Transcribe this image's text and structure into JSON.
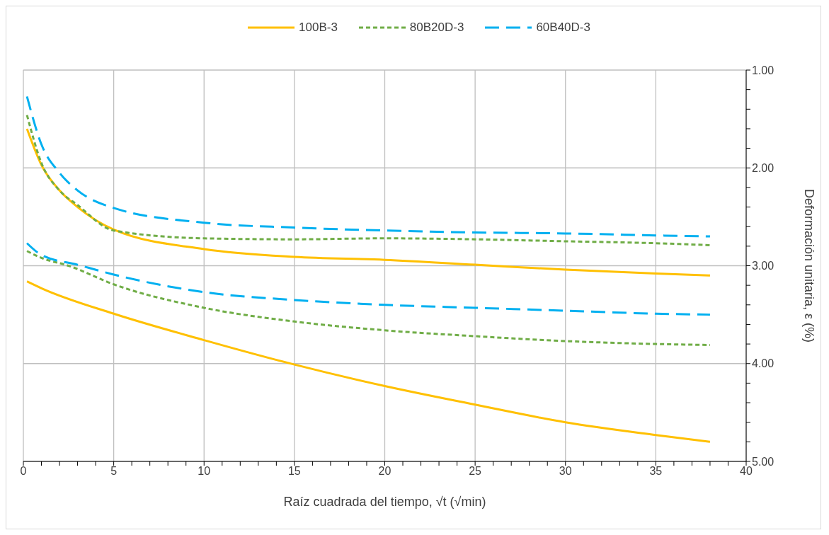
{
  "chart_data": {
    "type": "line",
    "xlabel": "Raíz cuadrada del tiempo, √t (√min)",
    "ylabel": "Deformación unitaria, ε (%)",
    "xlim": [
      0,
      40
    ],
    "ylim": [
      5,
      1
    ],
    "xticks": [
      0,
      {
        "value": 1,
        "label": null
      },
      {
        "value": 2,
        "label": null
      },
      {
        "value": 3,
        "label": null
      },
      {
        "value": 4,
        "label": null
      },
      5,
      {
        "value": 6,
        "label": null
      },
      {
        "value": 7,
        "label": null
      },
      {
        "value": 8,
        "label": null
      },
      {
        "value": 9,
        "label": null
      },
      10,
      {
        "value": 11,
        "label": null
      },
      {
        "value": 12,
        "label": null
      },
      {
        "value": 13,
        "label": null
      },
      {
        "value": 14,
        "label": null
      },
      15,
      {
        "value": 16,
        "label": null
      },
      {
        "value": 17,
        "label": null
      },
      {
        "value": 18,
        "label": null
      },
      {
        "value": 19,
        "label": null
      },
      20,
      {
        "value": 21,
        "label": null
      },
      {
        "value": 22,
        "label": null
      },
      {
        "value": 23,
        "label": null
      },
      {
        "value": 24,
        "label": null
      },
      25,
      {
        "value": 26,
        "label": null
      },
      {
        "value": 27,
        "label": null
      },
      {
        "value": 28,
        "label": null
      },
      {
        "value": 29,
        "label": null
      },
      30,
      {
        "value": 31,
        "label": null
      },
      {
        "value": 32,
        "label": null
      },
      {
        "value": 33,
        "label": null
      },
      {
        "value": 34,
        "label": null
      },
      35,
      {
        "value": 36,
        "label": null
      },
      {
        "value": 37,
        "label": null
      },
      {
        "value": 38,
        "label": null
      },
      {
        "value": 39,
        "label": null
      },
      40
    ],
    "yticks": [
      {
        "value": 1,
        "label": "1.00"
      },
      {
        "value": 1.2,
        "label": null
      },
      {
        "value": 1.4,
        "label": null
      },
      {
        "value": 1.6,
        "label": null
      },
      {
        "value": 1.8,
        "label": null
      },
      {
        "value": 2,
        "label": "2.00"
      },
      {
        "value": 2.2,
        "label": null
      },
      {
        "value": 2.4,
        "label": null
      },
      {
        "value": 2.6,
        "label": null
      },
      {
        "value": 2.8,
        "label": null
      },
      {
        "value": 3,
        "label": "3.00"
      },
      {
        "value": 3.2,
        "label": null
      },
      {
        "value": 3.4,
        "label": null
      },
      {
        "value": 3.6,
        "label": null
      },
      {
        "value": 3.8,
        "label": null
      },
      {
        "value": 4,
        "label": "4.00"
      },
      {
        "value": 4.2,
        "label": null
      },
      {
        "value": 4.4,
        "label": null
      },
      {
        "value": 4.6,
        "label": null
      },
      {
        "value": 4.8,
        "label": null
      },
      {
        "value": 5,
        "label": "5.00"
      }
    ],
    "grid": true,
    "legend": "top",
    "marker": "none",
    "series": [
      {
        "name": "100B-3",
        "color": "#ffc000",
        "line_style": "solid",
        "x": [
          0.2,
          1,
          2,
          3,
          5,
          10,
          15,
          20,
          25,
          30,
          35,
          38
        ],
        "values": [
          1.6,
          1.97,
          2.23,
          2.4,
          2.63,
          2.83,
          2.91,
          2.94,
          2.99,
          3.04,
          3.08,
          3.1
        ]
      },
      {
        "name": "80B20D-3",
        "color": "#70ad47",
        "line_style": "dotted",
        "x": [
          0.2,
          1,
          2,
          3,
          5,
          10,
          15,
          20,
          25,
          30,
          35,
          38
        ],
        "values": [
          1.46,
          1.95,
          2.23,
          2.38,
          2.64,
          2.72,
          2.73,
          2.72,
          2.73,
          2.75,
          2.77,
          2.79
        ]
      },
      {
        "name": "60B40D-3",
        "color": "#00b0f0",
        "line_style": "dashed",
        "x": [
          0.2,
          1,
          2,
          3,
          5,
          10,
          15,
          20,
          25,
          30,
          35,
          38
        ],
        "values": [
          1.27,
          1.76,
          2.05,
          2.23,
          2.41,
          2.56,
          2.61,
          2.64,
          2.66,
          2.67,
          2.69,
          2.7
        ]
      },
      {
        "color": "#ffc000",
        "line_style": "solid",
        "x": [
          0.2,
          1,
          5,
          10,
          15,
          20,
          25,
          30,
          35,
          38
        ],
        "values": [
          3.16,
          3.23,
          3.49,
          3.76,
          4.01,
          4.23,
          4.42,
          4.6,
          4.73,
          4.8
        ]
      },
      {
        "color": "#70ad47",
        "line_style": "dotted",
        "x": [
          0.2,
          1,
          2.5,
          5,
          10,
          15,
          20,
          25,
          30,
          35,
          38
        ],
        "values": [
          2.85,
          2.92,
          3,
          3.19,
          3.43,
          3.57,
          3.66,
          3.72,
          3.77,
          3.8,
          3.81
        ]
      },
      {
        "color": "#00b0f0",
        "line_style": "dashed",
        "x": [
          0.2,
          1,
          3,
          5,
          10,
          15,
          20,
          25,
          30,
          35,
          38
        ],
        "values": [
          2.77,
          2.89,
          2.99,
          3.09,
          3.27,
          3.35,
          3.4,
          3.43,
          3.46,
          3.49,
          3.5
        ]
      }
    ]
  }
}
